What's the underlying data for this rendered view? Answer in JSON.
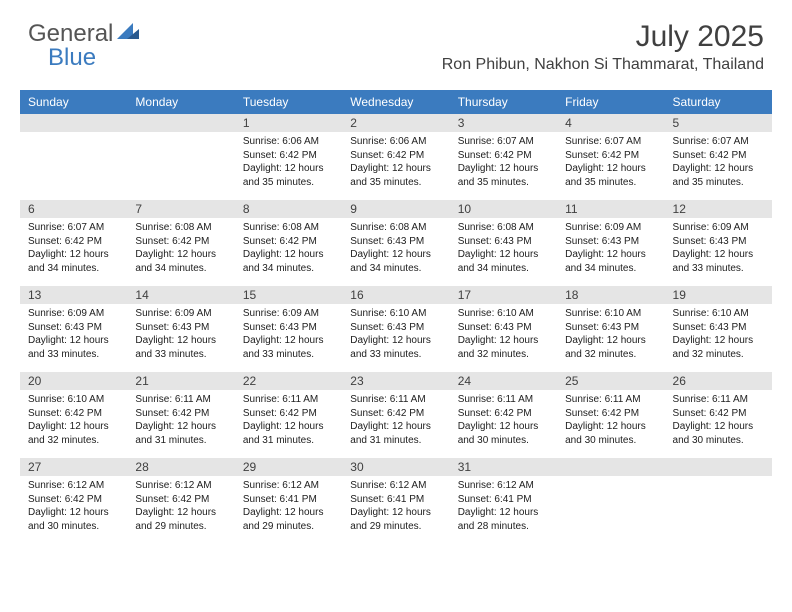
{
  "brand": {
    "word1": "General",
    "word2": "Blue"
  },
  "title": {
    "month": "July 2025",
    "location": "Ron Phibun, Nakhon Si Thammarat, Thailand"
  },
  "colors": {
    "accent": "#3b7bbf",
    "headerText": "#ffffff",
    "dayRow": "#e5e5e5",
    "text": "#404040"
  },
  "weekdays": [
    "Sunday",
    "Monday",
    "Tuesday",
    "Wednesday",
    "Thursday",
    "Friday",
    "Saturday"
  ],
  "days": [
    {
      "n": "",
      "sr": "",
      "ss": "",
      "dl": ""
    },
    {
      "n": "",
      "sr": "",
      "ss": "",
      "dl": ""
    },
    {
      "n": "1",
      "sr": "Sunrise: 6:06 AM",
      "ss": "Sunset: 6:42 PM",
      "dl": "Daylight: 12 hours and 35 minutes."
    },
    {
      "n": "2",
      "sr": "Sunrise: 6:06 AM",
      "ss": "Sunset: 6:42 PM",
      "dl": "Daylight: 12 hours and 35 minutes."
    },
    {
      "n": "3",
      "sr": "Sunrise: 6:07 AM",
      "ss": "Sunset: 6:42 PM",
      "dl": "Daylight: 12 hours and 35 minutes."
    },
    {
      "n": "4",
      "sr": "Sunrise: 6:07 AM",
      "ss": "Sunset: 6:42 PM",
      "dl": "Daylight: 12 hours and 35 minutes."
    },
    {
      "n": "5",
      "sr": "Sunrise: 6:07 AM",
      "ss": "Sunset: 6:42 PM",
      "dl": "Daylight: 12 hours and 35 minutes."
    },
    {
      "n": "6",
      "sr": "Sunrise: 6:07 AM",
      "ss": "Sunset: 6:42 PM",
      "dl": "Daylight: 12 hours and 34 minutes."
    },
    {
      "n": "7",
      "sr": "Sunrise: 6:08 AM",
      "ss": "Sunset: 6:42 PM",
      "dl": "Daylight: 12 hours and 34 minutes."
    },
    {
      "n": "8",
      "sr": "Sunrise: 6:08 AM",
      "ss": "Sunset: 6:42 PM",
      "dl": "Daylight: 12 hours and 34 minutes."
    },
    {
      "n": "9",
      "sr": "Sunrise: 6:08 AM",
      "ss": "Sunset: 6:43 PM",
      "dl": "Daylight: 12 hours and 34 minutes."
    },
    {
      "n": "10",
      "sr": "Sunrise: 6:08 AM",
      "ss": "Sunset: 6:43 PM",
      "dl": "Daylight: 12 hours and 34 minutes."
    },
    {
      "n": "11",
      "sr": "Sunrise: 6:09 AM",
      "ss": "Sunset: 6:43 PM",
      "dl": "Daylight: 12 hours and 34 minutes."
    },
    {
      "n": "12",
      "sr": "Sunrise: 6:09 AM",
      "ss": "Sunset: 6:43 PM",
      "dl": "Daylight: 12 hours and 33 minutes."
    },
    {
      "n": "13",
      "sr": "Sunrise: 6:09 AM",
      "ss": "Sunset: 6:43 PM",
      "dl": "Daylight: 12 hours and 33 minutes."
    },
    {
      "n": "14",
      "sr": "Sunrise: 6:09 AM",
      "ss": "Sunset: 6:43 PM",
      "dl": "Daylight: 12 hours and 33 minutes."
    },
    {
      "n": "15",
      "sr": "Sunrise: 6:09 AM",
      "ss": "Sunset: 6:43 PM",
      "dl": "Daylight: 12 hours and 33 minutes."
    },
    {
      "n": "16",
      "sr": "Sunrise: 6:10 AM",
      "ss": "Sunset: 6:43 PM",
      "dl": "Daylight: 12 hours and 33 minutes."
    },
    {
      "n": "17",
      "sr": "Sunrise: 6:10 AM",
      "ss": "Sunset: 6:43 PM",
      "dl": "Daylight: 12 hours and 32 minutes."
    },
    {
      "n": "18",
      "sr": "Sunrise: 6:10 AM",
      "ss": "Sunset: 6:43 PM",
      "dl": "Daylight: 12 hours and 32 minutes."
    },
    {
      "n": "19",
      "sr": "Sunrise: 6:10 AM",
      "ss": "Sunset: 6:43 PM",
      "dl": "Daylight: 12 hours and 32 minutes."
    },
    {
      "n": "20",
      "sr": "Sunrise: 6:10 AM",
      "ss": "Sunset: 6:42 PM",
      "dl": "Daylight: 12 hours and 32 minutes."
    },
    {
      "n": "21",
      "sr": "Sunrise: 6:11 AM",
      "ss": "Sunset: 6:42 PM",
      "dl": "Daylight: 12 hours and 31 minutes."
    },
    {
      "n": "22",
      "sr": "Sunrise: 6:11 AM",
      "ss": "Sunset: 6:42 PM",
      "dl": "Daylight: 12 hours and 31 minutes."
    },
    {
      "n": "23",
      "sr": "Sunrise: 6:11 AM",
      "ss": "Sunset: 6:42 PM",
      "dl": "Daylight: 12 hours and 31 minutes."
    },
    {
      "n": "24",
      "sr": "Sunrise: 6:11 AM",
      "ss": "Sunset: 6:42 PM",
      "dl": "Daylight: 12 hours and 30 minutes."
    },
    {
      "n": "25",
      "sr": "Sunrise: 6:11 AM",
      "ss": "Sunset: 6:42 PM",
      "dl": "Daylight: 12 hours and 30 minutes."
    },
    {
      "n": "26",
      "sr": "Sunrise: 6:11 AM",
      "ss": "Sunset: 6:42 PM",
      "dl": "Daylight: 12 hours and 30 minutes."
    },
    {
      "n": "27",
      "sr": "Sunrise: 6:12 AM",
      "ss": "Sunset: 6:42 PM",
      "dl": "Daylight: 12 hours and 30 minutes."
    },
    {
      "n": "28",
      "sr": "Sunrise: 6:12 AM",
      "ss": "Sunset: 6:42 PM",
      "dl": "Daylight: 12 hours and 29 minutes."
    },
    {
      "n": "29",
      "sr": "Sunrise: 6:12 AM",
      "ss": "Sunset: 6:41 PM",
      "dl": "Daylight: 12 hours and 29 minutes."
    },
    {
      "n": "30",
      "sr": "Sunrise: 6:12 AM",
      "ss": "Sunset: 6:41 PM",
      "dl": "Daylight: 12 hours and 29 minutes."
    },
    {
      "n": "31",
      "sr": "Sunrise: 6:12 AM",
      "ss": "Sunset: 6:41 PM",
      "dl": "Daylight: 12 hours and 28 minutes."
    },
    {
      "n": "",
      "sr": "",
      "ss": "",
      "dl": ""
    },
    {
      "n": "",
      "sr": "",
      "ss": "",
      "dl": ""
    }
  ]
}
